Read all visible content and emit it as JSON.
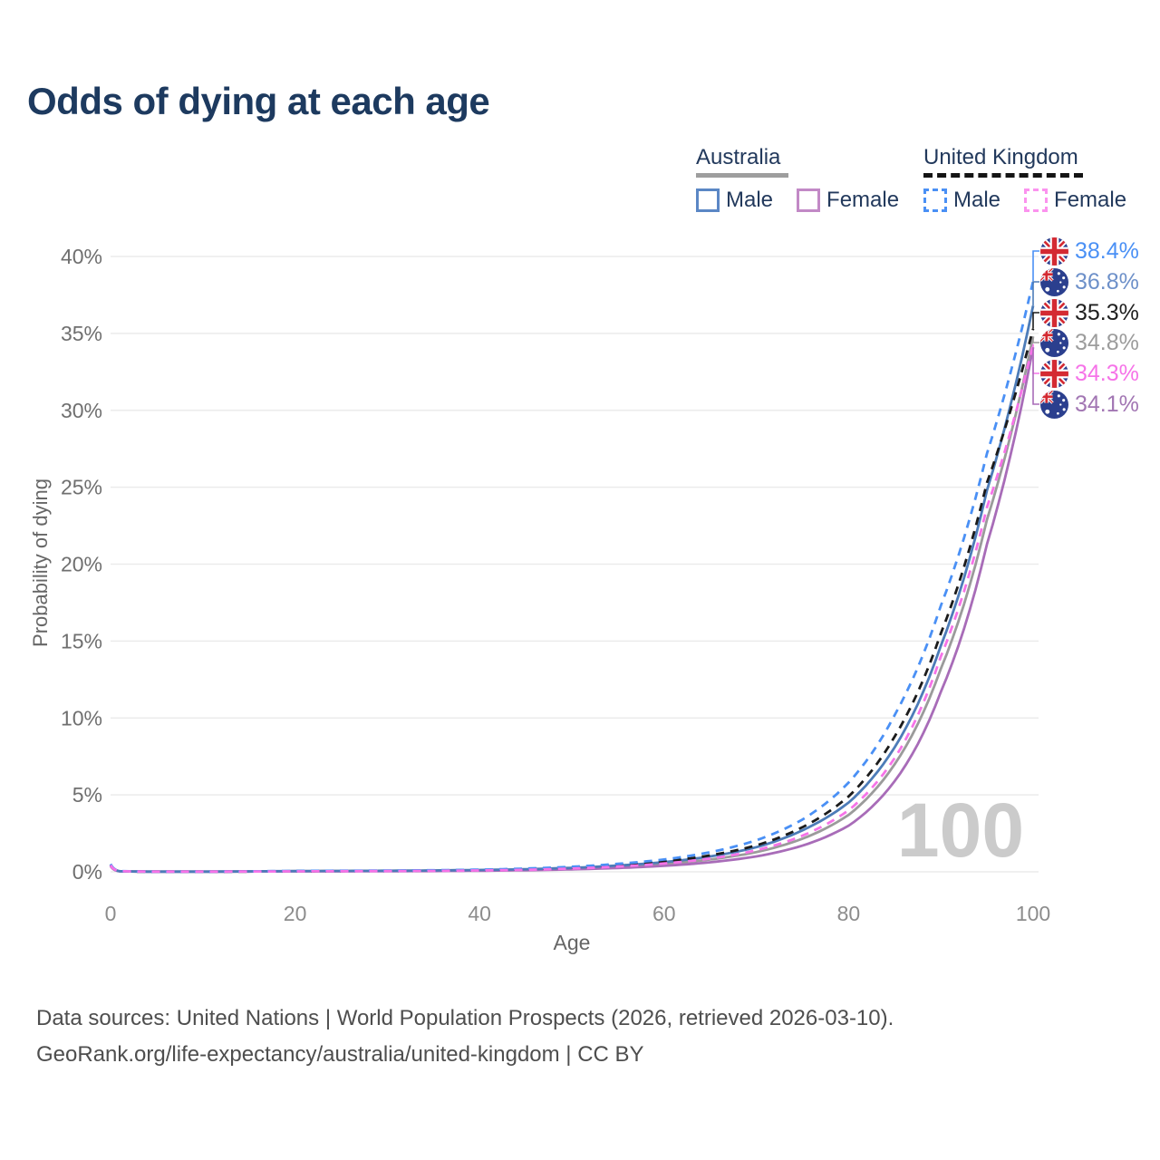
{
  "title": "Odds of dying at each age",
  "watermark": "100",
  "legend": {
    "groups": [
      {
        "label": "Australia",
        "underline_color": "#9e9e9e",
        "underline_style": "solid",
        "items": [
          {
            "label": "Male",
            "color": "#5b87c5",
            "dash": false
          },
          {
            "label": "Female",
            "color": "#c289c6",
            "dash": false
          }
        ]
      },
      {
        "label": "United Kingdom",
        "underline_color": "#141414",
        "underline_style": "dashed",
        "items": [
          {
            "label": "Male",
            "color": "#4a90f5",
            "dash": true
          },
          {
            "label": "Female",
            "color": "#fb93ee",
            "dash": true
          }
        ]
      }
    ]
  },
  "axes": {
    "x_label": "Age",
    "y_label": "Probability of dying",
    "x_ticks": [
      "0",
      "20",
      "40",
      "60",
      "80",
      "100"
    ],
    "x_tick_values": [
      0,
      20,
      40,
      60,
      80,
      100
    ],
    "y_ticks": [
      "0%",
      "5%",
      "10%",
      "15%",
      "20%",
      "25%",
      "30%",
      "35%",
      "40%"
    ],
    "y_tick_values": [
      0,
      5,
      10,
      15,
      20,
      25,
      30,
      35,
      40
    ]
  },
  "footer": {
    "line1": "Data sources: United Nations | World Population Prospects (2026, retrieved 2026-03-10).",
    "line2": "GeoRank.org/life-expectancy/australia/united-kingdom | CC BY"
  },
  "chart_data": {
    "type": "line",
    "title": "Odds of dying at each age",
    "xlabel": "Age",
    "ylabel": "Probability of dying",
    "xlim": [
      0,
      100
    ],
    "ylim_percent": [
      0,
      40
    ],
    "grid": "horizontal",
    "legend_position": "top-right",
    "x": [
      0,
      1,
      5,
      10,
      15,
      20,
      25,
      30,
      35,
      40,
      45,
      50,
      55,
      60,
      65,
      70,
      75,
      80,
      85,
      90,
      95,
      100
    ],
    "series": [
      {
        "name": "United Kingdom Male",
        "country": "United Kingdom",
        "sex": "Male",
        "flag": "uk",
        "color": "#4a90f5",
        "dash": true,
        "end_label": "38.4%",
        "end_value_percent": 38.4,
        "label_color": "#4a90f5",
        "values_percent": [
          0.5,
          0.05,
          0.01,
          0.01,
          0.03,
          0.06,
          0.07,
          0.08,
          0.1,
          0.14,
          0.21,
          0.33,
          0.52,
          0.8,
          1.28,
          2.05,
          3.4,
          5.8,
          10.2,
          17.3,
          27.2,
          38.4
        ]
      },
      {
        "name": "Australia Male",
        "country": "Australia",
        "sex": "Male",
        "flag": "australia",
        "color": "#4d7cb8",
        "dash": false,
        "end_label": "36.8%",
        "end_value_percent": 36.8,
        "label_color": "#6d90c9",
        "values_percent": [
          0.45,
          0.04,
          0.01,
          0.01,
          0.03,
          0.05,
          0.06,
          0.07,
          0.09,
          0.12,
          0.17,
          0.26,
          0.41,
          0.63,
          1.0,
          1.6,
          2.7,
          4.5,
          8.1,
          14.7,
          24.8,
          36.8
        ]
      },
      {
        "name": "United Kingdom Both sexes",
        "country": "United Kingdom",
        "sex": "Both",
        "flag": "uk",
        "color": "#1b1b1b",
        "dash": true,
        "end_label": "35.3%",
        "end_value_percent": 35.3,
        "label_color": "#1f1f1f",
        "values_percent": [
          0.47,
          0.04,
          0.01,
          0.01,
          0.02,
          0.04,
          0.05,
          0.06,
          0.08,
          0.11,
          0.17,
          0.27,
          0.43,
          0.67,
          1.07,
          1.72,
          2.9,
          4.9,
          8.8,
          15.5,
          25.3,
          35.3
        ]
      },
      {
        "name": "Australia Both sexes",
        "country": "Australia",
        "sex": "Both",
        "flag": "australia",
        "color": "#9b9b9b",
        "dash": false,
        "end_label": "34.8%",
        "end_value_percent": 34.8,
        "label_color": "#9c9c9c",
        "values_percent": [
          0.42,
          0.04,
          0.01,
          0.01,
          0.02,
          0.04,
          0.05,
          0.06,
          0.07,
          0.1,
          0.14,
          0.21,
          0.33,
          0.51,
          0.8,
          1.28,
          2.15,
          3.7,
          7.0,
          13.2,
          22.9,
          34.8
        ]
      },
      {
        "name": "United Kingdom Female",
        "country": "United Kingdom",
        "sex": "Female",
        "flag": "uk",
        "color": "#f673e8",
        "dash": true,
        "end_label": "34.3%",
        "end_value_percent": 34.3,
        "label_color": "#f673e8",
        "values_percent": [
          0.43,
          0.04,
          0.01,
          0.01,
          0.02,
          0.03,
          0.04,
          0.05,
          0.06,
          0.09,
          0.13,
          0.21,
          0.34,
          0.54,
          0.86,
          1.4,
          2.35,
          4.0,
          7.4,
          14.0,
          23.7,
          34.3
        ]
      },
      {
        "name": "Australia Female",
        "country": "Australia",
        "sex": "Female",
        "flag": "australia",
        "color": "#a86cb8",
        "dash": false,
        "end_label": "34.1%",
        "end_value_percent": 34.1,
        "label_color": "#a276b3",
        "values_percent": [
          0.38,
          0.03,
          0.01,
          0.01,
          0.02,
          0.03,
          0.03,
          0.04,
          0.05,
          0.07,
          0.1,
          0.16,
          0.25,
          0.39,
          0.62,
          1.0,
          1.7,
          3.0,
          5.9,
          11.7,
          21.3,
          34.1
        ]
      }
    ]
  }
}
